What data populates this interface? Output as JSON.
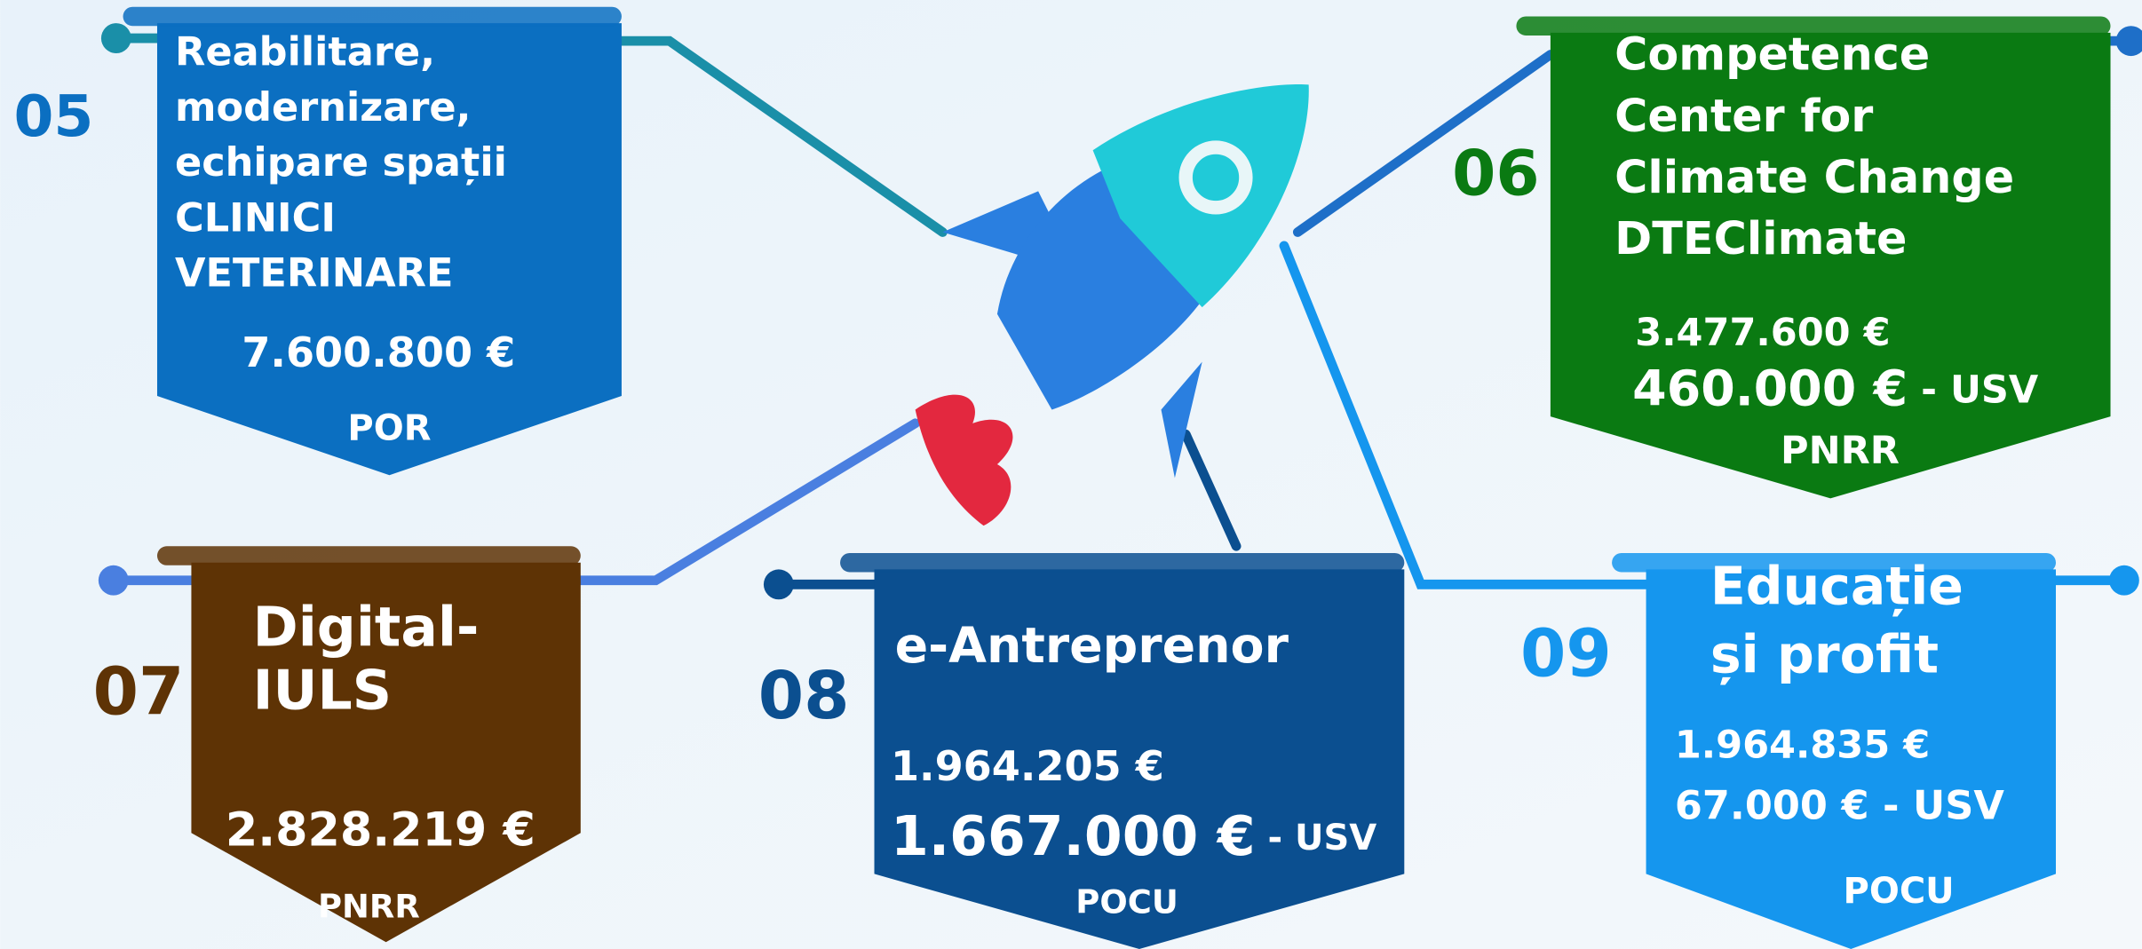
{
  "items": [
    {
      "number": "05",
      "color": "#0b6fc1",
      "title": [
        "Reabilitare,",
        "modernizare,",
        "echipare spații",
        "CLINICI",
        "VETERINARE"
      ],
      "amounts": [
        {
          "value": "7.600.800 €"
        }
      ],
      "program": "POR"
    },
    {
      "number": "06",
      "color": "#0a7a12",
      "title": [
        "Competence",
        "Center for",
        "Climate Change",
        "DTEClimate"
      ],
      "amounts": [
        {
          "value": "3.477.600 €"
        },
        {
          "value": "460.000 €",
          "suffix": " - USV"
        }
      ],
      "program": "PNRR"
    },
    {
      "number": "07",
      "color": "#5e3305",
      "title": [
        "Digital-",
        "IULS"
      ],
      "amounts": [
        {
          "value": "2.828.219 €"
        }
      ],
      "program": "PNRR"
    },
    {
      "number": "08",
      "color": "#0b4f90",
      "title": [
        "e-Antreprenor"
      ],
      "amounts": [
        {
          "value": "1.964.205 €"
        },
        {
          "value": "1.667.000 €",
          "suffix": " - USV"
        }
      ],
      "program": "POCU"
    },
    {
      "number": "09",
      "color": "#1596ee",
      "title": [
        "Educație",
        "și profit"
      ],
      "amounts": [
        {
          "value": "1.964.835 €"
        },
        {
          "value": "67.000 € - USV"
        }
      ],
      "program": "POCU"
    }
  ]
}
